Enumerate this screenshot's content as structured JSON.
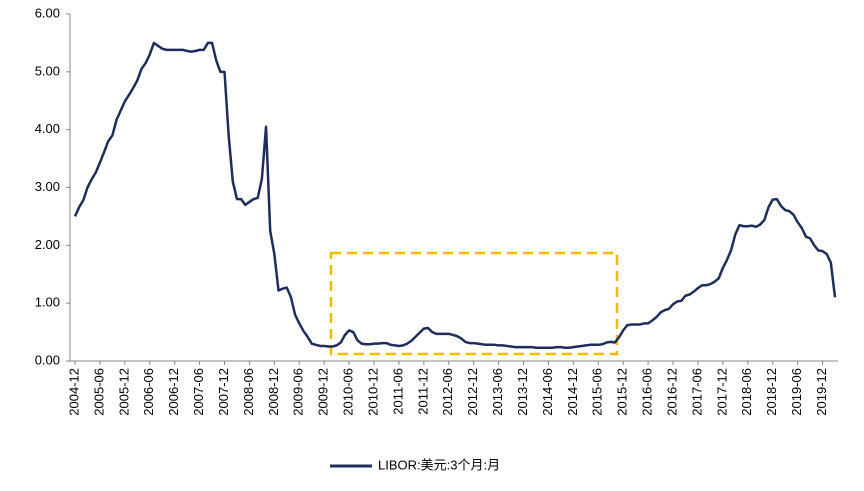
{
  "chart_data": {
    "type": "line",
    "categories": [
      "2004-12",
      null,
      null,
      null,
      null,
      null,
      "2005-06",
      null,
      null,
      null,
      null,
      null,
      "2005-12",
      null,
      null,
      null,
      null,
      null,
      "2006-06",
      null,
      null,
      null,
      null,
      null,
      "2006-12",
      null,
      null,
      null,
      null,
      null,
      "2007-06",
      null,
      null,
      null,
      null,
      null,
      "2007-12",
      null,
      null,
      null,
      null,
      null,
      "2008-06",
      null,
      null,
      null,
      null,
      null,
      "2008-12",
      null,
      null,
      null,
      null,
      null,
      "2009-06",
      null,
      null,
      null,
      null,
      null,
      "2009-12",
      null,
      null,
      null,
      null,
      null,
      "2010-06",
      null,
      null,
      null,
      null,
      null,
      "2010-12",
      null,
      null,
      null,
      null,
      null,
      "2011-06",
      null,
      null,
      null,
      null,
      null,
      "2011-12",
      null,
      null,
      null,
      null,
      null,
      "2012-06",
      null,
      null,
      null,
      null,
      null,
      "2012-12",
      null,
      null,
      null,
      null,
      null,
      "2013-06",
      null,
      null,
      null,
      null,
      null,
      "2013-12",
      null,
      null,
      null,
      null,
      null,
      "2014-06",
      null,
      null,
      null,
      null,
      null,
      "2014-12",
      null,
      null,
      null,
      null,
      null,
      "2015-06",
      null,
      null,
      null,
      null,
      null,
      "2015-12",
      null,
      null,
      null,
      null,
      null,
      "2016-06",
      null,
      null,
      null,
      null,
      null,
      "2016-12",
      null,
      null,
      null,
      null,
      null,
      "2017-06",
      null,
      null,
      null,
      null,
      null,
      "2017-12",
      null,
      null,
      null,
      null,
      null,
      "2018-06",
      null,
      null,
      null,
      null,
      null,
      "2018-12",
      null,
      null,
      null,
      null,
      null,
      "2019-06",
      null,
      null,
      null,
      null,
      null,
      "2019-12",
      null,
      null,
      null
    ],
    "series": [
      {
        "name": "LIBOR:美元:3个月:月",
        "color": "#1f2d5a",
        "values": [
          2.5,
          2.66,
          2.78,
          3.0,
          3.14,
          3.26,
          3.43,
          3.61,
          3.8,
          3.9,
          4.17,
          4.33,
          4.49,
          4.6,
          4.72,
          4.85,
          5.05,
          5.15,
          5.3,
          5.5,
          5.45,
          5.4,
          5.38,
          5.38,
          5.38,
          5.38,
          5.38,
          5.36,
          5.35,
          5.36,
          5.38,
          5.38,
          5.5,
          5.5,
          5.2,
          5.0,
          5.0,
          3.9,
          3.1,
          2.8,
          2.8,
          2.7,
          2.75,
          2.8,
          2.82,
          3.15,
          4.05,
          2.25,
          1.85,
          1.22,
          1.25,
          1.27,
          1.1,
          0.8,
          0.65,
          0.52,
          0.42,
          0.3,
          0.28,
          0.26,
          0.26,
          0.25,
          0.25,
          0.27,
          0.32,
          0.45,
          0.53,
          0.5,
          0.36,
          0.3,
          0.29,
          0.29,
          0.3,
          0.3,
          0.31,
          0.31,
          0.28,
          0.27,
          0.26,
          0.27,
          0.3,
          0.35,
          0.42,
          0.49,
          0.56,
          0.57,
          0.5,
          0.47,
          0.47,
          0.47,
          0.47,
          0.45,
          0.43,
          0.39,
          0.33,
          0.31,
          0.31,
          0.3,
          0.29,
          0.28,
          0.28,
          0.28,
          0.27,
          0.27,
          0.26,
          0.25,
          0.24,
          0.24,
          0.24,
          0.24,
          0.24,
          0.23,
          0.23,
          0.23,
          0.23,
          0.23,
          0.24,
          0.24,
          0.23,
          0.23,
          0.24,
          0.25,
          0.26,
          0.27,
          0.28,
          0.28,
          0.28,
          0.29,
          0.32,
          0.33,
          0.32,
          0.41,
          0.53,
          0.62,
          0.63,
          0.63,
          0.63,
          0.65,
          0.65,
          0.7,
          0.76,
          0.84,
          0.88,
          0.9,
          0.98,
          1.03,
          1.04,
          1.13,
          1.15,
          1.2,
          1.26,
          1.31,
          1.31,
          1.33,
          1.37,
          1.43,
          1.61,
          1.75,
          1.92,
          2.19,
          2.35,
          2.33,
          2.33,
          2.34,
          2.32,
          2.36,
          2.44,
          2.66,
          2.79,
          2.8,
          2.68,
          2.61,
          2.59,
          2.53,
          2.4,
          2.3,
          2.15,
          2.12,
          2.0,
          1.91,
          1.9,
          1.85,
          1.7,
          1.1
        ]
      }
    ],
    "ylim": [
      0,
      6
    ],
    "yticks": [
      {
        "value": 0,
        "label": "0.00"
      },
      {
        "value": 1,
        "label": "1.00"
      },
      {
        "value": 2,
        "label": "2.00"
      },
      {
        "value": 3,
        "label": "3.00"
      },
      {
        "value": 4,
        "label": "4.00"
      },
      {
        "value": 5,
        "label": "5.00"
      },
      {
        "value": 6,
        "label": "6.00"
      }
    ],
    "grid": false,
    "legend": "bottom"
  }
}
